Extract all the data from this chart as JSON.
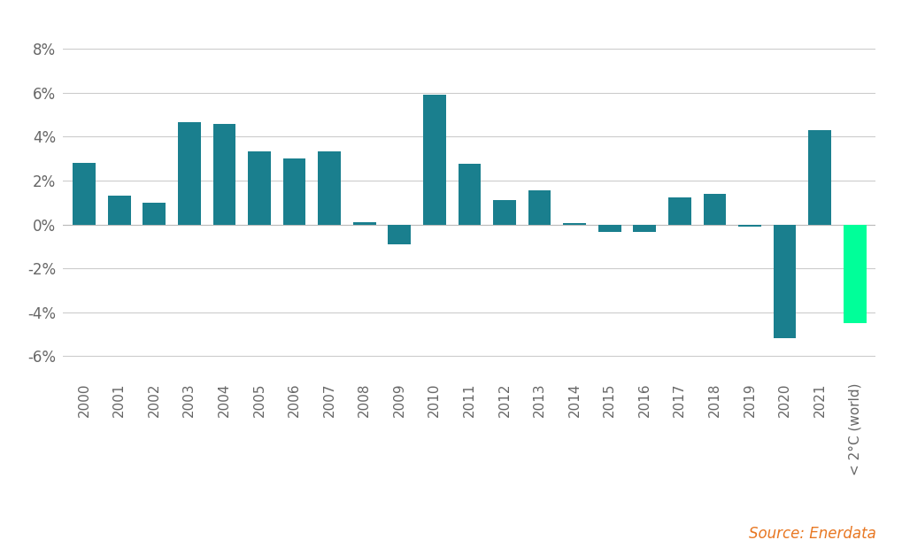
{
  "categories": [
    "2000",
    "2001",
    "2002",
    "2003",
    "2004",
    "2005",
    "2006",
    "2007",
    "2008",
    "2009",
    "2010",
    "2011",
    "2012",
    "2013",
    "2014",
    "2015",
    "2016",
    "2017",
    "2018",
    "2019",
    "2020",
    "2021",
    "< 2°C (world)"
  ],
  "values": [
    2.8,
    1.3,
    1.0,
    4.65,
    4.6,
    3.35,
    3.0,
    3.35,
    0.1,
    -0.9,
    5.9,
    2.75,
    1.1,
    1.55,
    0.05,
    -0.35,
    -0.35,
    1.25,
    1.4,
    -0.1,
    -5.2,
    4.3,
    -4.5
  ],
  "bar_colors": [
    "#1a7f8e",
    "#1a7f8e",
    "#1a7f8e",
    "#1a7f8e",
    "#1a7f8e",
    "#1a7f8e",
    "#1a7f8e",
    "#1a7f8e",
    "#1a7f8e",
    "#1a7f8e",
    "#1a7f8e",
    "#1a7f8e",
    "#1a7f8e",
    "#1a7f8e",
    "#1a7f8e",
    "#1a7f8e",
    "#1a7f8e",
    "#1a7f8e",
    "#1a7f8e",
    "#1a7f8e",
    "#1a7f8e",
    "#1a7f8e",
    "#00ff99"
  ],
  "ylim": [
    -7,
    9
  ],
  "yticks": [
    -6,
    -4,
    -2,
    0,
    2,
    4,
    6,
    8
  ],
  "ytick_labels": [
    "-6%",
    "-4%",
    "-2%",
    "0%",
    "2%",
    "4%",
    "6%",
    "8%"
  ],
  "source_text": "Source: Enerdata",
  "source_color": "#e87722",
  "background_color": "#ffffff",
  "grid_color": "#cccccc",
  "bar_width": 0.65
}
